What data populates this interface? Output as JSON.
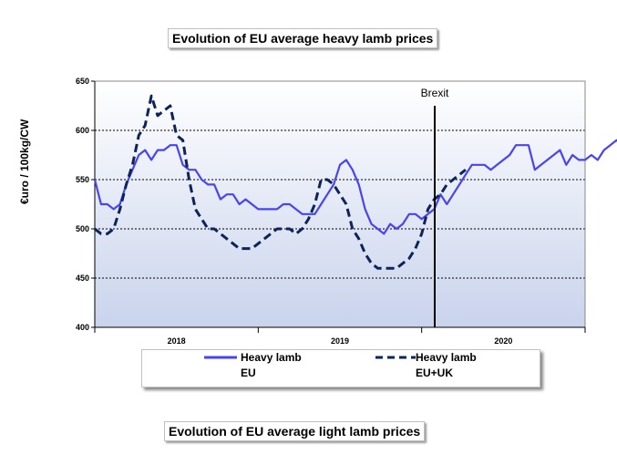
{
  "chart_data": {
    "type": "line",
    "title": "Evolution of EU average heavy lamb prices",
    "ylabel": "€uro / 100kg/CW",
    "ylim": [
      400,
      650
    ],
    "yticks": [
      400,
      450,
      500,
      550,
      600,
      650
    ],
    "xticks": [
      "2018",
      "2019",
      "2020"
    ],
    "annotation": "Brexit",
    "series": [
      {
        "name": "Heavy lamb EU",
        "color": "#4a44f0",
        "style": "solid",
        "values": [
          550,
          525,
          525,
          520,
          525,
          545,
          560,
          575,
          580,
          570,
          580,
          580,
          585,
          585,
          565,
          560,
          560,
          550,
          545,
          545,
          530,
          535,
          535,
          525,
          530,
          525,
          520,
          520,
          520,
          520,
          525,
          525,
          520,
          515,
          515,
          515,
          525,
          535,
          545,
          565,
          570,
          560,
          545,
          520,
          505,
          500,
          495,
          505,
          500,
          505,
          515,
          515,
          510,
          515,
          520,
          535,
          525,
          535,
          545,
          555,
          565,
          565,
          565,
          560,
          565,
          570,
          575,
          585,
          585,
          585,
          560,
          565,
          570,
          575,
          580,
          565,
          575,
          570,
          570,
          575,
          570,
          580,
          585,
          590,
          585,
          585,
          590,
          595,
          590,
          590
        ]
      },
      {
        "name": "Heavy lamb EU+UK",
        "color": "#0d2458",
        "style": "dashed",
        "values": [
          500,
          495,
          495,
          500,
          520,
          545,
          565,
          595,
          605,
          635,
          615,
          620,
          625,
          595,
          590,
          550,
          520,
          510,
          500,
          500,
          495,
          490,
          485,
          480,
          480,
          480,
          485,
          490,
          495,
          500,
          500,
          500,
          495,
          500,
          510,
          525,
          550,
          550,
          545,
          535,
          525,
          500,
          490,
          475,
          465,
          460,
          460,
          460,
          460,
          465,
          470,
          480,
          495,
          520,
          530,
          535,
          545,
          550,
          555,
          560
        ]
      }
    ]
  },
  "title2": "Evolution of EU average light lamb prices",
  "legend": {
    "eu_line1": "Heavy lamb",
    "eu_line2": "EU",
    "euuk_line1": "Heavy lamb",
    "euuk_line2": "EU+UK"
  }
}
